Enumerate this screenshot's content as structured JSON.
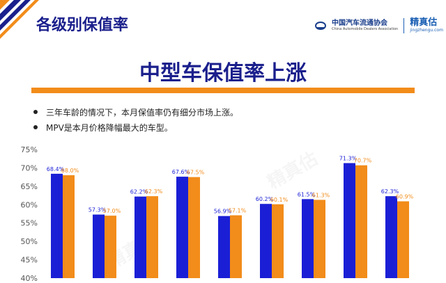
{
  "header": {
    "title": "各级别保值率"
  },
  "logo": {
    "org_cn": "中国汽车流通协会",
    "org_en": "China Automobile Dealers Association",
    "brand_cn": "精真估",
    "brand_en": "jingzhengu.com"
  },
  "watermark": "精真估",
  "slide": {
    "title": "中型车保值率上涨",
    "bullets": [
      "三年车龄的情况下，本月保值率仍有细分市场上涨。",
      "MPV是本月价格降幅最大的车型。"
    ]
  },
  "colors": {
    "accent": "#f28c1a",
    "title": "#1a1f8c",
    "series_current": "#1a1fd6",
    "series_previous": "#f28c1a"
  },
  "chart_data": {
    "type": "bar",
    "ylim": [
      0.4,
      0.75
    ],
    "yticks": [
      "75%",
      "70%",
      "65%",
      "60%",
      "55%",
      "50%",
      "45%",
      "40%"
    ],
    "categories": [
      "",
      "",
      "",
      "",
      "",
      "",
      "",
      "",
      ""
    ],
    "series": [
      {
        "values": [
          0.684,
          0.573,
          0.622,
          0.676,
          0.569,
          0.602,
          0.615,
          0.713,
          0.623
        ],
        "labels": [
          "68.4%",
          "57.3%",
          "62.2%",
          "67.6%",
          "56.9%",
          "60.2%",
          "61.5%",
          "71.3%",
          "62.3%"
        ]
      },
      {
        "values": [
          0.68,
          0.57,
          0.623,
          0.675,
          0.571,
          0.601,
          0.613,
          0.707,
          0.609
        ],
        "labels": [
          "68.0%",
          "57.0%",
          "62.3%",
          "67.5%",
          "57.1%",
          "60.1%",
          "61.3%",
          "70.7%",
          "60.9%"
        ]
      }
    ],
    "grid": false,
    "legend": "none"
  }
}
